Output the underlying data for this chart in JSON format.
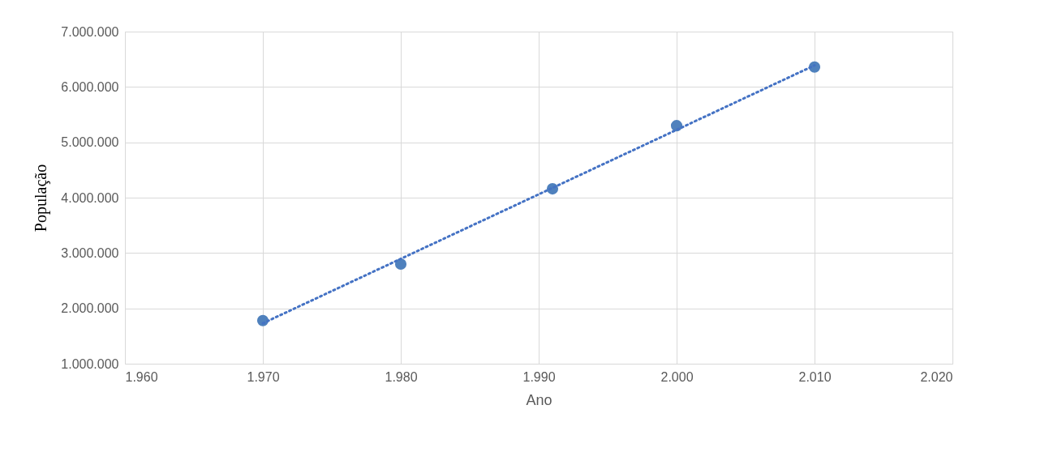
{
  "chart_data": {
    "type": "scatter",
    "xlabel": "Ano",
    "ylabel": "População",
    "xlim": [
      1960,
      2020
    ],
    "ylim": [
      1000000,
      7000000
    ],
    "xticks": [
      {
        "value": 1960,
        "label": "1.960"
      },
      {
        "value": 1970,
        "label": "1.970"
      },
      {
        "value": 1980,
        "label": "1.980"
      },
      {
        "value": 1990,
        "label": "1.990"
      },
      {
        "value": 2000,
        "label": "2.000"
      },
      {
        "value": 2010,
        "label": "2.010"
      },
      {
        "value": 2020,
        "label": "2.020"
      }
    ],
    "yticks": [
      {
        "value": 1000000,
        "label": "1.000.000"
      },
      {
        "value": 2000000,
        "label": "2.000.000"
      },
      {
        "value": 3000000,
        "label": "3.000.000"
      },
      {
        "value": 4000000,
        "label": "4.000.000"
      },
      {
        "value": 5000000,
        "label": "5.000.000"
      },
      {
        "value": 6000000,
        "label": "6.000.000"
      },
      {
        "value": 7000000,
        "label": "7.000.000"
      }
    ],
    "grid": true,
    "legend": false,
    "series": [
      {
        "marker": "circle",
        "color": "#4f81bd",
        "x": [
          1970,
          1980,
          1991,
          2000,
          2010
        ],
        "values": [
          1780000,
          2800000,
          4160000,
          5300000,
          6360000
        ]
      },
      {
        "type": "line",
        "line_style": "dotted",
        "marker": "none",
        "color": "#4472c4",
        "x": [
          1970,
          2010
        ],
        "values": [
          1730000,
          6390000
        ]
      }
    ]
  }
}
